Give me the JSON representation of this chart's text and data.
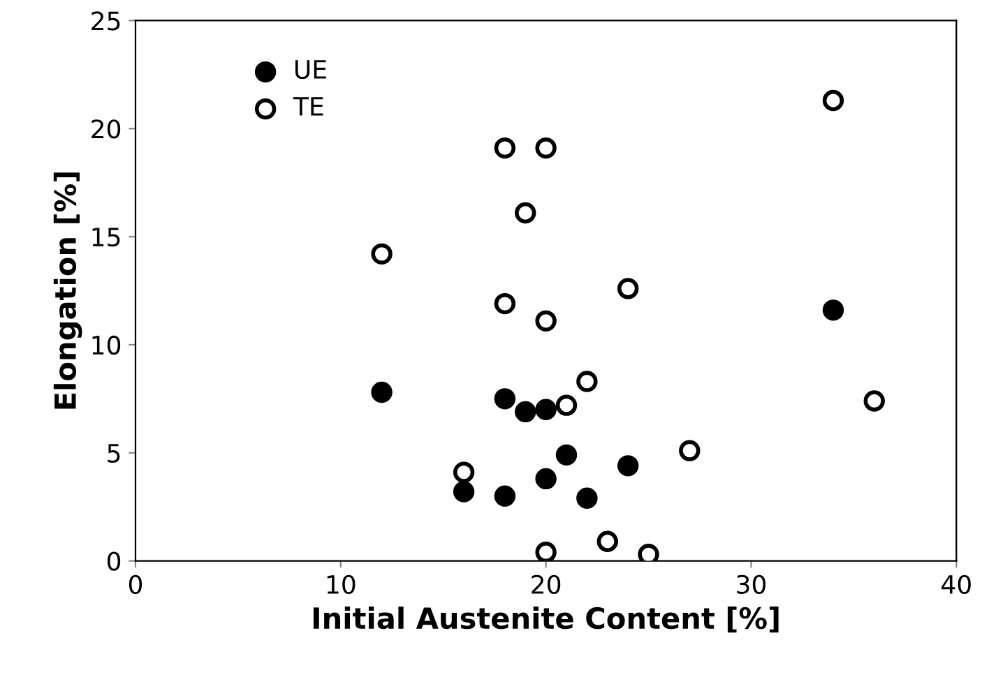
{
  "chart_data": {
    "type": "scatter",
    "xlabel": "Initial Austenite Content [%]",
    "ylabel": "Elongation [%]",
    "xlim": [
      0,
      40
    ],
    "xticks": [
      0,
      10,
      20,
      30,
      40
    ],
    "ylim": [
      0,
      25
    ],
    "yticks": [
      0,
      5,
      10,
      15,
      20,
      25
    ],
    "grid": false,
    "legend": "top left",
    "marker": "circle",
    "series": [
      {
        "name": "UE",
        "color": "#000000",
        "x": [
          12,
          16,
          18,
          18,
          19,
          20,
          20,
          21,
          22,
          24,
          34
        ],
        "values": [
          7.8,
          3.2,
          7.5,
          3.0,
          6.9,
          7.0,
          3.8,
          4.9,
          2.9,
          4.4,
          11.6
        ]
      },
      {
        "name": "TE",
        "color": "#ffffff",
        "x": [
          12,
          16,
          18,
          18,
          19,
          20,
          20,
          20,
          21,
          22,
          23,
          24,
          25,
          27,
          34,
          36
        ],
        "values": [
          14.2,
          4.1,
          19.1,
          11.9,
          16.1,
          19.1,
          11.1,
          0.4,
          7.2,
          8.3,
          0.9,
          12.6,
          0.3,
          5.1,
          21.3,
          7.4
        ]
      }
    ]
  }
}
